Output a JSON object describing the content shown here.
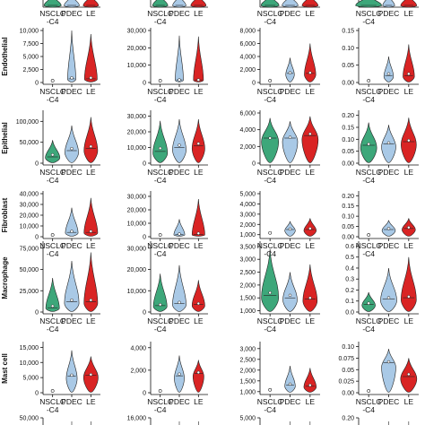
{
  "chart_data": {
    "type": "violin",
    "categories": [
      "NSCLC\n-C4",
      "PDEC",
      "LE"
    ],
    "colors": {
      "NSCLC\n-C4": "#3da77a",
      "PDEC": "#a9c9e6",
      "LE": "#d92424"
    },
    "panel_columns": 4,
    "rows": [
      {
        "name": "",
        "partial": "bottom",
        "panels": [
          {
            "tick_labels": [],
            "ylim": [
              0,
              1
            ],
            "violins": [
              {
                "median": 0.06,
                "mean": 0.06,
                "max": 0.35,
                "width": 0.9
              },
              {
                "median": 0.04,
                "mean": 0.04,
                "max": 0.45,
                "width": 0.8
              },
              {
                "median": 0.05,
                "mean": 0.05,
                "max": 0.4,
                "width": 0.8
              }
            ]
          },
          {
            "tick_labels": [],
            "ylim": [
              0,
              1
            ],
            "violins": [
              {
                "median": 0.05,
                "mean": 0.05,
                "max": 0.4,
                "width": 0.8
              },
              {
                "median": 0.04,
                "mean": 0.04,
                "max": 0.5,
                "width": 0.7
              },
              {
                "median": 0.05,
                "mean": 0.05,
                "max": 0.45,
                "width": 0.8
              }
            ]
          },
          {
            "tick_labels": [],
            "ylim": [
              0,
              1
            ],
            "violins": [
              {
                "median": 0.07,
                "mean": 0.07,
                "max": 0.5,
                "width": 0.9
              },
              {
                "median": 0.05,
                "mean": 0.05,
                "max": 0.5,
                "width": 0.8
              },
              {
                "median": 0.06,
                "mean": 0.06,
                "max": 0.5,
                "width": 0.8
              }
            ]
          },
          {
            "tick_labels": [],
            "ylim": [
              0,
              1
            ],
            "violins": [
              {
                "median": 0.05,
                "mean": 0.05,
                "max": 0.4,
                "width": 1.3
              },
              {
                "median": 0.03,
                "mean": 0.03,
                "max": 0.45,
                "width": 0.6
              },
              {
                "median": 0.04,
                "mean": 0.04,
                "max": 0.45,
                "width": 0.8
              }
            ]
          }
        ]
      },
      {
        "name": "Endothelial",
        "panels": [
          {
            "tick_labels": [
              "0",
              "2,500",
              "5,000",
              "7,500",
              "10,000"
            ],
            "ylim": [
              0,
              10000
            ],
            "violins": [
              {
                "point": 0
              },
              {
                "median": 700,
                "mean": 900,
                "max": 10000,
                "width": 0.45
              },
              {
                "median": 700,
                "mean": 900,
                "max": 9300,
                "width": 0.7
              }
            ]
          },
          {
            "tick_labels": [
              "0",
              "10,000",
              "20,000",
              "30,000"
            ],
            "ylim": [
              0,
              30000
            ],
            "violins": [
              {
                "point": 0
              },
              {
                "median": 1500,
                "mean": 1500,
                "max": 27000,
                "width": 0.45
              },
              {
                "median": 1500,
                "mean": 1500,
                "max": 26500,
                "width": 0.55
              }
            ]
          },
          {
            "tick_labels": [
              "0",
              "2,000",
              "4,000",
              "6,000",
              "8,000"
            ],
            "ylim": [
              0,
              8000
            ],
            "violins": [
              {
                "point": 0
              },
              {
                "median": 1400,
                "mean": 1500,
                "max": 3800,
                "width": 0.45
              },
              {
                "median": 1400,
                "mean": 1500,
                "max": 6000,
                "width": 0.6
              }
            ]
          },
          {
            "tick_labels": [
              "0.00",
              "0.05",
              "0.10",
              "0.15"
            ],
            "ylim": [
              0,
              0.15
            ],
            "violins": [
              {
                "point": 0
              },
              {
                "median": 0.02,
                "mean": 0.025,
                "max": 0.075,
                "width": 0.5
              },
              {
                "median": 0.02,
                "mean": 0.025,
                "max": 0.11,
                "width": 0.6
              }
            ]
          }
        ]
      },
      {
        "name": "Epithelial",
        "panels": [
          {
            "tick_labels": [
              "0",
              "50,000",
              "100,000"
            ],
            "ylim": [
              0,
              120000
            ],
            "violins": [
              {
                "median": 15000,
                "mean": 20000,
                "max": 55000,
                "width": 0.8
              },
              {
                "median": 30000,
                "mean": 35000,
                "max": 90000,
                "width": 0.75
              },
              {
                "median": 35000,
                "mean": 40000,
                "max": 110000,
                "width": 0.75
              }
            ]
          },
          {
            "tick_labels": [
              "0",
              "10,000",
              "20,000",
              "30,000"
            ],
            "ylim": [
              0,
              32000
            ],
            "violins": [
              {
                "median": 7500,
                "mean": 9500,
                "max": 27000,
                "width": 0.8
              },
              {
                "median": 10000,
                "mean": 11500,
                "max": 28000,
                "width": 0.75
              },
              {
                "median": 11000,
                "mean": 12500,
                "max": 28000,
                "width": 0.7
              }
            ]
          },
          {
            "tick_labels": [
              "0",
              "2,000",
              "4,000",
              "6,000"
            ],
            "ylim": [
              0,
              6000
            ],
            "violins": [
              {
                "median": 3000,
                "mean": 3000,
                "max": 5400,
                "width": 0.9
              },
              {
                "median": 3000,
                "mean": 3100,
                "max": 5000,
                "width": 0.8
              },
              {
                "median": 3300,
                "mean": 3500,
                "max": 5600,
                "width": 0.85
              }
            ]
          },
          {
            "tick_labels": [
              "0.00",
              "0.05",
              "0.10",
              "0.15",
              "0.20"
            ],
            "ylim": [
              0,
              0.21
            ],
            "violins": [
              {
                "median": 0.075,
                "mean": 0.08,
                "max": 0.17,
                "width": 0.85
              },
              {
                "median": 0.08,
                "mean": 0.085,
                "max": 0.16,
                "width": 0.75
              },
              {
                "median": 0.09,
                "mean": 0.095,
                "max": 0.19,
                "width": 0.8
              }
            ]
          }
        ]
      },
      {
        "name": "Fibroblast",
        "panels": [
          {
            "tick_labels": [
              "0",
              "10,000",
              "20,000",
              "30,000",
              "40,000"
            ],
            "ylim": [
              0,
              40000
            ],
            "violins": [
              {
                "point": 0
              },
              {
                "median": 4000,
                "mean": 5000,
                "max": 27000,
                "width": 0.7
              },
              {
                "median": 4000,
                "mean": 5000,
                "max": 36000,
                "width": 0.75
              }
            ]
          },
          {
            "tick_labels": [
              "0",
              "10,000",
              "20,000",
              "30,000"
            ],
            "ylim": [
              0,
              32000
            ],
            "violins": [
              {
                "point": 0
              },
              {
                "median": 1500,
                "mean": 2000,
                "max": 13000,
                "width": 0.6
              },
              {
                "median": 1500,
                "mean": 2500,
                "max": 28000,
                "width": 0.7
              }
            ]
          },
          {
            "tick_labels": [
              "1,000",
              "2,000",
              "3,000",
              "4,000",
              "5,000"
            ],
            "ylim": [
              800,
              5000
            ],
            "violins": [
              {
                "point": 1000
              },
              {
                "median": 1500,
                "mean": 1550,
                "max": 2300,
                "width": 0.55
              },
              {
                "median": 1500,
                "mean": 1600,
                "max": 2600,
                "width": 0.65
              }
            ]
          },
          {
            "tick_labels": [
              "0.00",
              "0.05",
              "0.10",
              "0.15",
              "0.20"
            ],
            "ylim": [
              0,
              0.21
            ],
            "violins": [
              {
                "point": 0
              },
              {
                "median": 0.035,
                "mean": 0.04,
                "max": 0.08,
                "width": 0.7
              },
              {
                "median": 0.04,
                "mean": 0.045,
                "max": 0.09,
                "width": 0.7
              }
            ]
          }
        ]
      },
      {
        "name": "Macrophage",
        "panels": [
          {
            "tick_labels": [
              "0",
              "25,000",
              "50,000",
              "75,000"
            ],
            "ylim": [
              0,
              80000
            ],
            "violins": [
              {
                "median": 5000,
                "mean": 7000,
                "max": 40000,
                "width": 0.75
              },
              {
                "median": 12000,
                "mean": 14000,
                "max": 60000,
                "width": 0.8
              },
              {
                "median": 12000,
                "mean": 14000,
                "max": 70000,
                "width": 0.75
              }
            ]
          },
          {
            "tick_labels": [
              "0",
              "10,000",
              "20,000",
              "30,000"
            ],
            "ylim": [
              0,
              32000
            ],
            "violins": [
              {
                "median": 3000,
                "mean": 3500,
                "max": 18000,
                "width": 0.75
              },
              {
                "median": 4000,
                "mean": 4500,
                "max": 22000,
                "width": 0.75
              },
              {
                "median": 3500,
                "mean": 4000,
                "max": 15000,
                "width": 0.7
              }
            ]
          },
          {
            "tick_labels": [
              "1,000",
              "1,500",
              "2,000",
              "2,500",
              "3,000",
              "3,500"
            ],
            "ylim": [
              950,
              3600
            ],
            "violins": [
              {
                "median": 1600,
                "mean": 1700,
                "max": 3400,
                "width": 0.9
              },
              {
                "median": 1500,
                "mean": 1600,
                "max": 2500,
                "width": 0.75
              },
              {
                "median": 1450,
                "mean": 1500,
                "max": 2800,
                "width": 0.75
              }
            ]
          },
          {
            "tick_labels": [
              "0.0",
              "0.1",
              "0.2",
              "0.3",
              "0.4",
              "0.5",
              "0.6"
            ],
            "ylim": [
              0,
              0.62
            ],
            "violins": [
              {
                "median": 0.07,
                "mean": 0.08,
                "max": 0.18,
                "width": 0.7
              },
              {
                "median": 0.12,
                "mean": 0.13,
                "max": 0.4,
                "width": 0.85
              },
              {
                "median": 0.13,
                "mean": 0.14,
                "max": 0.5,
                "width": 0.8
              }
            ]
          }
        ]
      },
      {
        "name": "Mast cell",
        "panels": [
          {
            "tick_labels": [
              "0",
              "5,000",
              "10,000",
              "15,000"
            ],
            "ylim": [
              0,
              16000
            ],
            "violins": [
              {
                "point": 0
              },
              {
                "median": 5500,
                "mean": 5800,
                "max": 14000,
                "width": 0.6
              },
              {
                "median": 5800,
                "mean": 6000,
                "max": 12000,
                "width": 0.8
              }
            ]
          },
          {
            "tick_labels": [
              "0",
              "2,000",
              "4,000"
            ],
            "ylim": [
              0,
              4300
            ],
            "violins": [
              {
                "point": 0
              },
              {
                "median": 1500,
                "mean": 1650,
                "max": 3300,
                "width": 0.55
              },
              {
                "median": 1700,
                "mean": 1800,
                "max": 2900,
                "width": 0.6
              }
            ]
          },
          {
            "tick_labels": [
              "1,000",
              "1,500",
              "2,000",
              "2,500",
              "3,000"
            ],
            "ylim": [
              950,
              3200
            ],
            "violins": [
              {
                "point": 1000
              },
              {
                "median": 1300,
                "mean": 1350,
                "max": 2200,
                "width": 0.55
              },
              {
                "median": 1250,
                "mean": 1300,
                "max": 2100,
                "width": 0.65
              }
            ]
          },
          {
            "tick_labels": [
              "0.00",
              "0.025",
              "0.05",
              "0.075",
              "0.10"
            ],
            "ylim": [
              0,
              0.105
            ],
            "violins": [
              {
                "point": 0
              },
              {
                "median": 0.065,
                "mean": 0.067,
                "max": 0.095,
                "width": 0.75
              },
              {
                "median": 0.035,
                "mean": 0.04,
                "max": 0.075,
                "width": 0.85
              }
            ]
          }
        ]
      },
      {
        "name": "",
        "partial": "top",
        "panels": [
          {
            "tick_labels": [
              "50,000"
            ],
            "ylim": [
              0,
              50000
            ],
            "violins": []
          },
          {
            "tick_labels": [
              "16,000"
            ],
            "ylim": [
              0,
              16000
            ],
            "violins": []
          },
          {
            "tick_labels": [
              "5,000"
            ],
            "ylim": [
              0,
              5000
            ],
            "violins": []
          },
          {
            "tick_labels": [
              "0.20"
            ],
            "ylim": [
              0,
              0.2
            ],
            "violins": []
          }
        ]
      }
    ]
  }
}
